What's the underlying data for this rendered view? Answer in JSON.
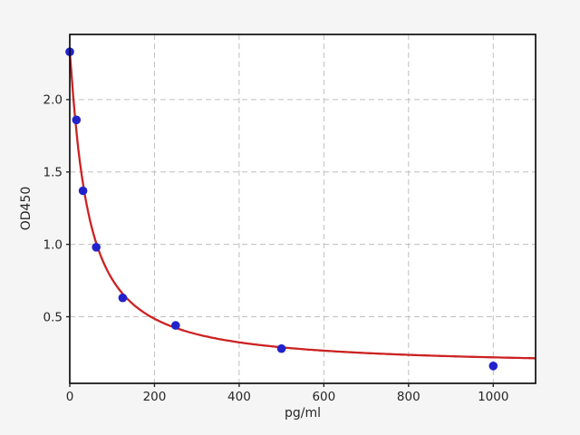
{
  "figure": {
    "background_color": "#f5f5f5",
    "plot_background_color": "#ffffff",
    "spine_color": "#000000",
    "grid_color": "#bfbfbf",
    "tick_color": "#262626",
    "text_color": "#262626"
  },
  "chart_data": {
    "type": "scatter",
    "title": "",
    "xlabel": "pg/ml",
    "ylabel": "OD450",
    "xlim": [
      0,
      1100
    ],
    "ylim": [
      0.04,
      2.45
    ],
    "xticks": [
      0,
      200,
      400,
      600,
      800,
      1000
    ],
    "xtick_labels": [
      "0",
      "200",
      "400",
      "600",
      "800",
      "1000"
    ],
    "yticks": [
      0.5,
      1.0,
      1.5,
      2.0
    ],
    "ytick_labels": [
      "0.5",
      "1.0",
      "1.5",
      "2.0"
    ],
    "grid": true,
    "grid_style": "dashed",
    "legend": "none",
    "series": [
      {
        "name": "standard-points",
        "kind": "scatter",
        "marker": "circle",
        "color": "#2222cc",
        "x": [
          0,
          15.6,
          31.2,
          62.5,
          125,
          250,
          500,
          1000
        ],
        "y": [
          2.33,
          1.86,
          1.37,
          0.98,
          0.63,
          0.44,
          0.28,
          0.16
        ]
      },
      {
        "name": "4pl-fit-curve",
        "kind": "line",
        "color": "#cc2222",
        "model": "4PL",
        "params": {
          "a": 2.33,
          "b": 1.1,
          "c": 42,
          "d": 0.155
        },
        "x_range": [
          0,
          1100
        ]
      }
    ]
  }
}
